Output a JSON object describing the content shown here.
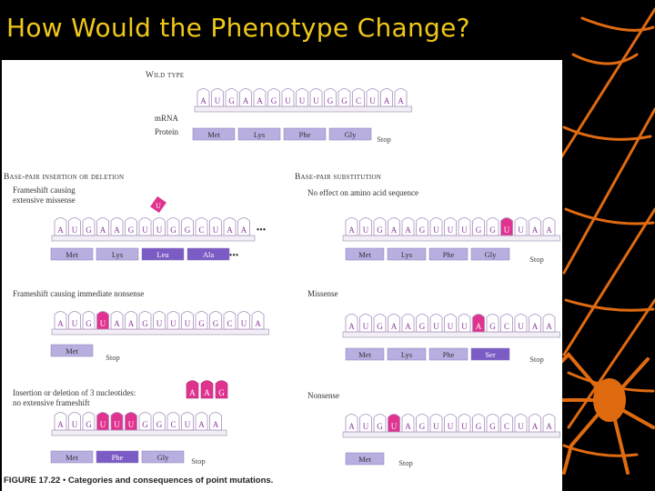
{
  "slide": {
    "title": "How Would the Phenotype Change?"
  },
  "colors": {
    "nucleotide": "#c8a9d6",
    "highlight": "#e0338f",
    "protein": "#b8aee0",
    "protein_highlight": "#7b5cc4",
    "strand": "#f2eef6"
  },
  "figure": {
    "caption_num": "FIGURE 17.22",
    "caption_sep": "•",
    "caption_text": "Categories and consequences of point mutations.",
    "wild_type": {
      "heading": "Wild type",
      "mrna_label": "mRNA",
      "protein_label": "Protein",
      "mrna": [
        "A",
        "U",
        "G",
        "A",
        "A",
        "G",
        "U",
        "U",
        "U",
        "G",
        "G",
        "C",
        "U",
        "A",
        "A"
      ],
      "protein": [
        "Met",
        "Lys",
        "Phe",
        "Gly"
      ],
      "stop": "Stop"
    },
    "insertion_deletion": {
      "heading": "Base-pair insertion or deletion",
      "examples": [
        {
          "desc1": "Frameshift causing",
          "desc2": "extensive missense",
          "mrna": [
            "A",
            "U",
            "G",
            "A",
            "A",
            "G",
            "U",
            "U",
            "G",
            "G",
            "C",
            "U",
            "A",
            "A"
          ],
          "protein": [
            "Met",
            "Lys",
            "Leu",
            "Ala"
          ],
          "stop": "",
          "ellipsis": "•••",
          "inserted": [
            "U"
          ]
        },
        {
          "desc1": "Frameshift causing immediate nonsense",
          "desc2": "",
          "mrna": [
            "A",
            "U",
            "G",
            "U",
            "A",
            "A",
            "G",
            "U",
            "U",
            "U",
            "G",
            "G",
            "C",
            "U",
            "A"
          ],
          "protein": [
            "Met"
          ],
          "stop": "Stop",
          "inserted": []
        },
        {
          "desc1": "Insertion or deletion of 3 nucleotides:",
          "desc2": "no extensive frameshift",
          "mrna": [
            "A",
            "U",
            "G",
            "U",
            "U",
            "U",
            "G",
            "G",
            "C",
            "U",
            "A",
            "A"
          ],
          "protein": [
            "Met",
            "Phe",
            "Gly"
          ],
          "stop": "Stop",
          "inserted": [
            "A",
            "A",
            "G"
          ]
        }
      ]
    },
    "substitution": {
      "heading": "Base-pair substitution",
      "examples": [
        {
          "desc1": "No effect on amino acid sequence",
          "mrna": [
            "A",
            "U",
            "G",
            "A",
            "A",
            "G",
            "U",
            "U",
            "U",
            "G",
            "G",
            "U",
            "U",
            "A",
            "A"
          ],
          "protein": [
            "Met",
            "Lys",
            "Phe",
            "Gly"
          ],
          "stop": "Stop"
        },
        {
          "desc1": "Missense",
          "mrna": [
            "A",
            "U",
            "G",
            "A",
            "A",
            "G",
            "U",
            "U",
            "U",
            "A",
            "G",
            "C",
            "U",
            "A",
            "A"
          ],
          "protein": [
            "Met",
            "Lys",
            "Phe",
            "Ser"
          ],
          "stop": "Stop"
        },
        {
          "desc1": "Nonsense",
          "mrna": [
            "A",
            "U",
            "G",
            "U",
            "A",
            "G",
            "U",
            "U",
            "U",
            "G",
            "G",
            "C",
            "U",
            "A",
            "A"
          ],
          "protein": [
            "Met"
          ],
          "stop": "Stop"
        }
      ]
    }
  }
}
